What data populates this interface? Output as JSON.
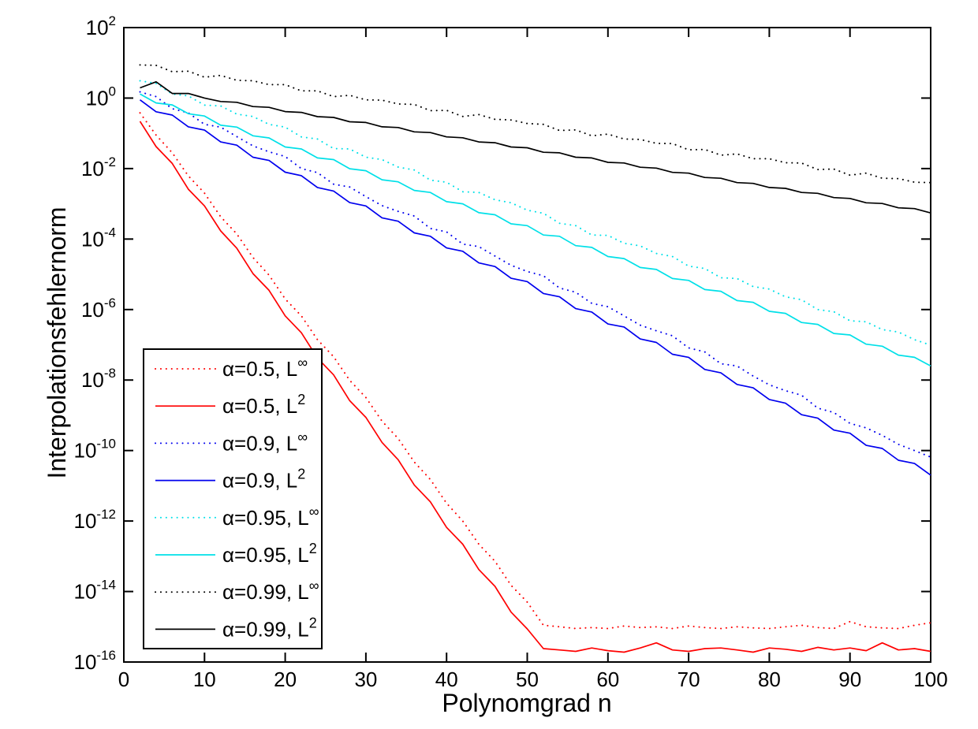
{
  "figure": {
    "background": "#ffffff",
    "axis_color": "#000000"
  },
  "chart_data": {
    "type": "line",
    "title": "",
    "xlabel": "Polynomgrad n",
    "ylabel": "Interpolationsfehlernorm",
    "grid": false,
    "legend_position": "lower-left",
    "x_axis": {
      "min": 0,
      "max": 100,
      "ticks": [
        0,
        10,
        20,
        30,
        40,
        50,
        60,
        70,
        80,
        90,
        100
      ]
    },
    "y_axis": {
      "scale": "log",
      "min_exponent": -16,
      "max_exponent": 2,
      "tick_base": "10",
      "tick_exponents": [
        2,
        0,
        -2,
        -4,
        -6,
        -8,
        -10,
        -12,
        -14,
        -16
      ]
    },
    "n": [
      2,
      4,
      6,
      8,
      10,
      12,
      14,
      16,
      18,
      20,
      22,
      24,
      26,
      28,
      30,
      32,
      34,
      36,
      38,
      40,
      42,
      44,
      46,
      48,
      50,
      52,
      54,
      56,
      58,
      60,
      62,
      64,
      66,
      68,
      70,
      72,
      74,
      76,
      78,
      80,
      82,
      84,
      86,
      88,
      90,
      92,
      94,
      96,
      98,
      100
    ],
    "series": [
      {
        "id": "alpha-05-linf",
        "name": "α=0.5, L∞",
        "legend_base": "α=0.5, L",
        "legend_sup": "∞",
        "color": "#ff0000",
        "style": "dotted",
        "values": [
          0.38,
          0.089,
          0.028,
          0.0062,
          0.002,
          0.00043,
          0.00014,
          3e-05,
          9.5e-06,
          2e-06,
          6.6e-07,
          1.4e-07,
          4.6e-08,
          9.8e-09,
          3.2e-09,
          6.8e-10,
          2.2e-10,
          4.7e-11,
          1.5e-11,
          3.2e-12,
          1e-12,
          2.2e-13,
          7.2e-14,
          1.5e-14,
          5e-15,
          1.1e-15,
          1e-15,
          8.9e-16,
          9.5e-16,
          8.9e-16,
          1.05e-15,
          9.5e-16,
          1e-15,
          8.9e-16,
          1.05e-15,
          9.5e-16,
          8.9e-16,
          1e-15,
          9.3e-16,
          8.9e-16,
          1e-15,
          1.1e-15,
          9.5e-16,
          8.9e-16,
          1.4e-15,
          1e-15,
          9.3e-16,
          8.9e-16,
          1.1e-15,
          1.3e-15
        ]
      },
      {
        "id": "alpha-05-l2",
        "name": "α=0.5, L2",
        "legend_base": "α=0.5, L",
        "legend_sup": "2",
        "color": "#ff0000",
        "style": "solid",
        "values": [
          0.22,
          0.042,
          0.014,
          0.0026,
          0.00087,
          0.00017,
          5.5e-05,
          1.05e-05,
          3.5e-06,
          6.6e-07,
          2.2e-07,
          4.2e-08,
          1.4e-08,
          2.6e-09,
          8.7e-10,
          1.7e-10,
          5.5e-11,
          1.05e-11,
          3.5e-12,
          6.6e-13,
          2.2e-13,
          4.2e-14,
          1.4e-14,
          2.6e-15,
          8.7e-16,
          2.4e-16,
          2.2e-16,
          2e-16,
          2.5e-16,
          2.1e-16,
          1.9e-16,
          2.5e-16,
          3.5e-16,
          2.2e-16,
          2e-16,
          2.4e-16,
          2.5e-16,
          2.2e-16,
          1.9e-16,
          2.5e-16,
          2.3e-16,
          2e-16,
          2.6e-16,
          2.2e-16,
          2.5e-16,
          2.1e-16,
          3.5e-16,
          2.2e-16,
          2.4e-16,
          2e-16
        ]
      },
      {
        "id": "alpha-09-linf",
        "name": "α=0.9, L∞",
        "legend_base": "α=0.9, L",
        "legend_sup": "∞",
        "color": "#0000ee",
        "style": "dotted",
        "values": [
          1.5,
          1.1,
          0.5,
          0.38,
          0.18,
          0.15,
          0.081,
          0.044,
          0.03,
          0.022,
          0.01,
          0.0077,
          0.0036,
          0.003,
          0.0016,
          0.00089,
          0.00061,
          0.00045,
          0.0002,
          0.00016,
          7.2e-05,
          6.1e-05,
          3.3e-05,
          1.8e-05,
          1.2e-05,
          9.1e-06,
          4.1e-06,
          3.1e-06,
          1.5e-06,
          1.2e-06,
          6.6e-07,
          3.6e-07,
          2.5e-07,
          1.8e-07,
          8.2e-08,
          6.3e-08,
          2.9e-08,
          2.5e-08,
          1.3e-08,
          7.3e-09,
          5e-09,
          3.7e-09,
          1.6e-09,
          1.2e-09,
          5.9e-10,
          4.4e-10,
          2.7e-10,
          1.5e-10,
          1e-10,
          6.5e-11
        ]
      },
      {
        "id": "alpha-09-l2",
        "name": "α=0.9, L2",
        "legend_base": "α=0.9, L",
        "legend_sup": "2",
        "color": "#0000ee",
        "style": "solid",
        "values": [
          0.89,
          0.41,
          0.33,
          0.153,
          0.123,
          0.057,
          0.046,
          0.021,
          0.017,
          0.0079,
          0.0063,
          0.0029,
          0.0023,
          0.00108,
          0.00087,
          0.0004,
          0.00032,
          0.00015,
          0.00012,
          5.6e-05,
          4.5e-05,
          2.1e-05,
          1.66e-05,
          7.7e-06,
          6.2e-06,
          2.85e-06,
          2.3e-06,
          1.06e-06,
          8.5e-07,
          3.9e-07,
          3.2e-07,
          1.46e-07,
          1.17e-07,
          5.4e-08,
          4.4e-08,
          2e-08,
          1.6e-08,
          7.5e-09,
          6e-09,
          2.8e-09,
          2.2e-09,
          1.04e-09,
          8.3e-10,
          3.8e-10,
          3.1e-10,
          1.4e-10,
          1.15e-10,
          5.3e-11,
          4.3e-11,
          2e-11
        ]
      },
      {
        "id": "alpha-095-linf",
        "name": "α=0.95, L∞",
        "legend_base": "α=0.95, L",
        "legend_sup": "∞",
        "color": "#00e0e8",
        "style": "dotted",
        "values": [
          3.1,
          2.6,
          1.3,
          1.15,
          0.63,
          0.6,
          0.35,
          0.3,
          0.18,
          0.15,
          0.079,
          0.069,
          0.037,
          0.036,
          0.021,
          0.018,
          0.011,
          0.0091,
          0.0047,
          0.0041,
          0.0022,
          0.0021,
          0.0013,
          0.00107,
          0.00066,
          0.00054,
          0.00028,
          0.00024,
          0.00013,
          0.000127,
          7.6e-05,
          6.4e-05,
          3.9e-05,
          3.2e-05,
          1.7e-05,
          1.46e-05,
          8e-06,
          7.6e-06,
          4.5e-06,
          3.8e-06,
          2.3e-06,
          1.9e-06,
          1e-06,
          8.7e-07,
          4.8e-07,
          4.5e-07,
          2.7e-07,
          2.3e-07,
          1.4e-07,
          9.8e-08
        ]
      },
      {
        "id": "alpha-095-l2",
        "name": "α=0.95, L2",
        "legend_base": "α=0.95, L",
        "legend_sup": "2",
        "color": "#00e0e8",
        "style": "solid",
        "values": [
          1.3,
          0.73,
          0.64,
          0.36,
          0.31,
          0.17,
          0.15,
          0.085,
          0.074,
          0.041,
          0.036,
          0.02,
          0.018,
          0.0099,
          0.0087,
          0.0048,
          0.0042,
          0.0024,
          0.0021,
          0.00115,
          0.001,
          0.00056,
          0.00049,
          0.00027,
          0.00024,
          0.00013,
          0.00012,
          6.5e-05,
          5.8e-05,
          3.2e-05,
          2.8e-05,
          1.56e-05,
          1.37e-05,
          7.6e-06,
          6.7e-06,
          3.7e-06,
          3.3e-06,
          1.8e-06,
          1.6e-06,
          8.9e-07,
          7.8e-07,
          4.3e-07,
          3.8e-07,
          2.1e-07,
          1.9e-07,
          1.04e-07,
          9.1e-08,
          5.1e-08,
          4.4e-08,
          2.5e-08
        ]
      },
      {
        "id": "alpha-099-linf",
        "name": "α=0.99, L∞",
        "legend_base": "α=0.99, L",
        "legend_sup": "∞",
        "color": "#000000",
        "style": "dotted",
        "values": [
          8.7,
          8.5,
          5.6,
          5.8,
          3.9,
          4.4,
          3.2,
          3.1,
          2.4,
          2.4,
          1.6,
          1.6,
          1.1,
          1.2,
          0.89,
          0.87,
          0.68,
          0.66,
          0.44,
          0.45,
          0.3,
          0.34,
          0.25,
          0.24,
          0.19,
          0.18,
          0.12,
          0.125,
          0.085,
          0.095,
          0.069,
          0.067,
          0.052,
          0.051,
          0.034,
          0.035,
          0.024,
          0.026,
          0.019,
          0.019,
          0.0146,
          0.0143,
          0.0094,
          0.0097,
          0.0065,
          0.0074,
          0.0053,
          0.0052,
          0.0041,
          0.004
        ]
      },
      {
        "id": "alpha-099-l2",
        "name": "α=0.99, L2",
        "legend_base": "α=0.99, L",
        "legend_sup": "2",
        "color": "#000000",
        "style": "solid",
        "values": [
          1.95,
          2.9,
          1.35,
          1.35,
          1.0,
          0.8,
          0.76,
          0.575,
          0.547,
          0.413,
          0.392,
          0.297,
          0.282,
          0.213,
          0.203,
          0.153,
          0.146,
          0.11,
          0.105,
          0.079,
          0.075,
          0.057,
          0.054,
          0.041,
          0.039,
          0.029,
          0.028,
          0.021,
          0.02,
          0.015,
          0.0144,
          0.0109,
          0.0103,
          0.0078,
          0.0074,
          0.0056,
          0.0053,
          0.004,
          0.0038,
          0.0029,
          0.00275,
          0.0021,
          0.00198,
          0.0015,
          0.00142,
          0.00107,
          0.00102,
          0.00077,
          0.00073,
          0.00055
        ]
      }
    ]
  }
}
